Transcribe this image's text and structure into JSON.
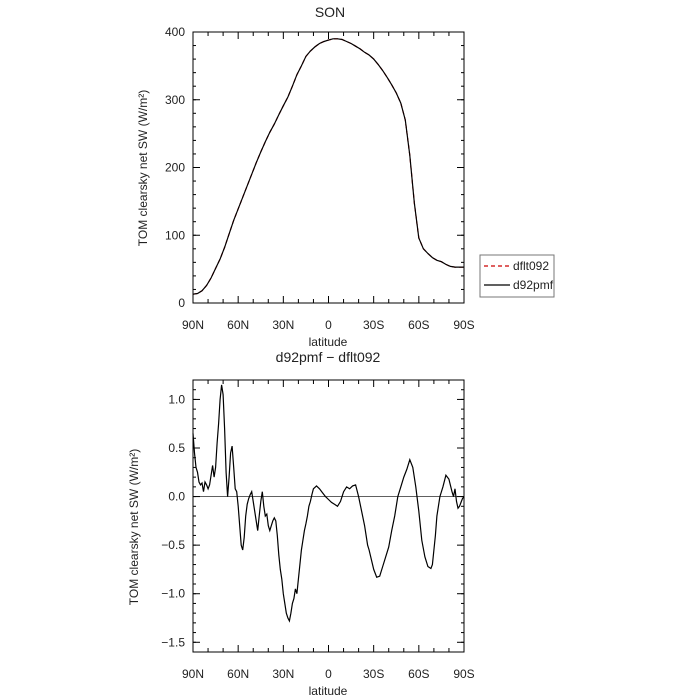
{
  "chart_data": [
    {
      "type": "line",
      "title": "SON",
      "xlabel": "latitude",
      "ylabel": "TOM clearsky net SW (W/m²)",
      "xlim": [
        90,
        -90
      ],
      "ylim": [
        0,
        400
      ],
      "xticks": [
        90,
        60,
        30,
        0,
        -30,
        -60,
        -90
      ],
      "xtick_labels": [
        "90N",
        "60N",
        "30N",
        "0",
        "30S",
        "60S",
        "90S"
      ],
      "yticks": [
        0,
        100,
        200,
        300,
        400
      ],
      "ytick_labels": [
        "0",
        "100",
        "200",
        "300",
        "400"
      ],
      "legend_position": "right",
      "series": [
        {
          "name": "dflt092",
          "color": "#cc0000",
          "dash": "dashed",
          "x": [
            90,
            87,
            84,
            81,
            78,
            75,
            72,
            69,
            66,
            63,
            60,
            57,
            54,
            51,
            48,
            45,
            42,
            39,
            36,
            33,
            30,
            27,
            24,
            21,
            18,
            15,
            12,
            9,
            6,
            3,
            0,
            -3,
            -6,
            -9,
            -12,
            -15,
            -18,
            -21,
            -24,
            -27,
            -30,
            -33,
            -36,
            -39,
            -42,
            -45,
            -48,
            -51,
            -54,
            -57,
            -60,
            -63,
            -66,
            -69,
            -72,
            -75,
            -78,
            -81,
            -84,
            -87,
            -90
          ],
          "y": [
            13,
            14,
            18,
            26,
            37,
            51,
            65,
            82,
            102,
            122,
            139,
            156,
            173,
            190,
            207,
            223,
            238,
            252,
            264,
            278,
            291,
            304,
            320,
            337,
            350,
            364,
            372,
            378,
            383,
            386,
            388,
            390,
            390,
            389,
            386,
            383,
            379,
            375,
            370,
            366,
            360,
            352,
            343,
            333,
            322,
            310,
            295,
            270,
            218,
            148,
            96,
            80,
            73,
            67,
            63,
            61,
            57,
            54,
            53,
            53,
            53
          ]
        },
        {
          "name": "d92pmf",
          "color": "#000000",
          "dash": "solid",
          "x": [
            90,
            87,
            84,
            81,
            78,
            75,
            72,
            69,
            66,
            63,
            60,
            57,
            54,
            51,
            48,
            45,
            42,
            39,
            36,
            33,
            30,
            27,
            24,
            21,
            18,
            15,
            12,
            9,
            6,
            3,
            0,
            -3,
            -6,
            -9,
            -12,
            -15,
            -18,
            -21,
            -24,
            -27,
            -30,
            -33,
            -36,
            -39,
            -42,
            -45,
            -48,
            -51,
            -54,
            -57,
            -60,
            -63,
            -66,
            -69,
            -72,
            -75,
            -78,
            -81,
            -84,
            -87,
            -90
          ],
          "y": [
            13,
            14,
            18,
            26,
            37,
            51,
            65,
            82,
            102,
            122,
            139,
            156,
            173,
            190,
            207,
            223,
            238,
            252,
            264,
            278,
            291,
            304,
            320,
            337,
            350,
            364,
            372,
            378,
            383,
            386,
            388,
            390,
            390,
            389,
            386,
            383,
            379,
            375,
            370,
            366,
            360,
            352,
            343,
            333,
            322,
            310,
            295,
            270,
            218,
            148,
            96,
            80,
            73,
            67,
            63,
            61,
            57,
            54,
            53,
            53,
            53
          ]
        }
      ]
    },
    {
      "type": "line",
      "title": "d92pmf − dflt092",
      "xlabel": "latitude",
      "ylabel": "TOM clearsky net SW (W/m²)",
      "xlim": [
        90,
        -90
      ],
      "ylim": [
        -1.6,
        1.2
      ],
      "xticks": [
        90,
        60,
        30,
        0,
        -30,
        -60,
        -90
      ],
      "xtick_labels": [
        "90N",
        "60N",
        "30N",
        "0",
        "30S",
        "60S",
        "90S"
      ],
      "yticks": [
        -1.5,
        -1.0,
        -0.5,
        0.0,
        0.5,
        1.0
      ],
      "ytick_labels": [
        "−1.5",
        "−1.0",
        "−0.5",
        "0.0",
        "0.5",
        "1.0"
      ],
      "zero_line": true,
      "series": [
        {
          "name": "",
          "color": "#000000",
          "dash": "solid",
          "x": [
            90,
            89,
            88,
            87,
            86,
            85,
            84,
            83,
            82,
            81,
            80,
            79,
            78,
            77,
            76,
            75,
            74,
            73,
            72,
            71,
            70,
            69,
            68,
            67,
            66,
            65,
            64,
            63,
            62,
            61,
            60,
            59,
            58,
            57,
            56,
            55,
            54,
            53,
            52,
            51,
            50,
            49,
            48,
            47,
            46,
            45,
            44,
            43,
            42,
            41,
            40,
            39,
            38,
            37,
            36,
            35,
            34,
            33,
            32,
            31,
            30,
            29,
            28,
            27,
            26,
            25,
            24,
            23,
            22,
            21,
            20,
            19,
            18,
            17,
            16,
            15,
            14,
            13,
            12,
            11,
            10,
            8,
            6,
            4,
            2,
            0,
            -2,
            -4,
            -6,
            -8,
            -10,
            -12,
            -14,
            -16,
            -18,
            -20,
            -22,
            -24,
            -25,
            -26,
            -27,
            -28,
            -30,
            -32,
            -34,
            -36,
            -38,
            -40,
            -42,
            -44,
            -46,
            -48,
            -50,
            -52,
            -54,
            -56,
            -58,
            -60,
            -62,
            -64,
            -66,
            -67,
            -68,
            -69,
            -70,
            -71,
            -72,
            -74,
            -76,
            -78,
            -80,
            -82,
            -83,
            -84,
            -85,
            -86,
            -87,
            -88,
            -89,
            -90
          ],
          "y": [
            0.65,
            0.45,
            0.3,
            0.25,
            0.15,
            0.12,
            0.14,
            0.05,
            0.15,
            0.12,
            0.08,
            0.12,
            0.22,
            0.32,
            0.2,
            0.3,
            0.55,
            0.75,
            1.0,
            1.15,
            1.05,
            0.7,
            0.25,
            0.0,
            0.2,
            0.45,
            0.52,
            0.3,
            0.08,
            0.05,
            -0.1,
            -0.3,
            -0.5,
            -0.55,
            -0.42,
            -0.2,
            -0.08,
            -0.02,
            0.02,
            0.05,
            -0.05,
            -0.15,
            -0.25,
            -0.35,
            -0.2,
            -0.05,
            0.05,
            -0.1,
            -0.2,
            -0.18,
            -0.3,
            -0.35,
            -0.3,
            -0.25,
            -0.22,
            -0.25,
            -0.4,
            -0.6,
            -0.75,
            -0.85,
            -1.0,
            -1.1,
            -1.2,
            -1.25,
            -1.28,
            -1.2,
            -1.1,
            -1.05,
            -0.95,
            -1.0,
            -0.85,
            -0.7,
            -0.55,
            -0.45,
            -0.35,
            -0.28,
            -0.2,
            -0.1,
            -0.05,
            0.02,
            0.08,
            0.11,
            0.08,
            0.04,
            0.0,
            -0.03,
            -0.06,
            -0.08,
            -0.1,
            -0.05,
            0.05,
            0.1,
            0.08,
            0.11,
            0.12,
            0.0,
            -0.15,
            -0.3,
            -0.4,
            -0.5,
            -0.55,
            -0.62,
            -0.75,
            -0.83,
            -0.82,
            -0.72,
            -0.62,
            -0.52,
            -0.35,
            -0.2,
            0.0,
            0.1,
            0.2,
            0.28,
            0.38,
            0.3,
            0.1,
            -0.15,
            -0.45,
            -0.62,
            -0.72,
            -0.73,
            -0.74,
            -0.7,
            -0.55,
            -0.4,
            -0.2,
            0.0,
            0.1,
            0.22,
            0.18,
            0.05,
            0.0,
            0.08,
            -0.05,
            -0.12,
            -0.1,
            -0.06,
            -0.02,
            0.0
          ]
        }
      ]
    }
  ],
  "legend": {
    "entries": [
      {
        "label": "dflt092",
        "color": "#cc0000",
        "dash": "dashed"
      },
      {
        "label": "d92pmf",
        "color": "#000000",
        "dash": "solid"
      }
    ]
  }
}
